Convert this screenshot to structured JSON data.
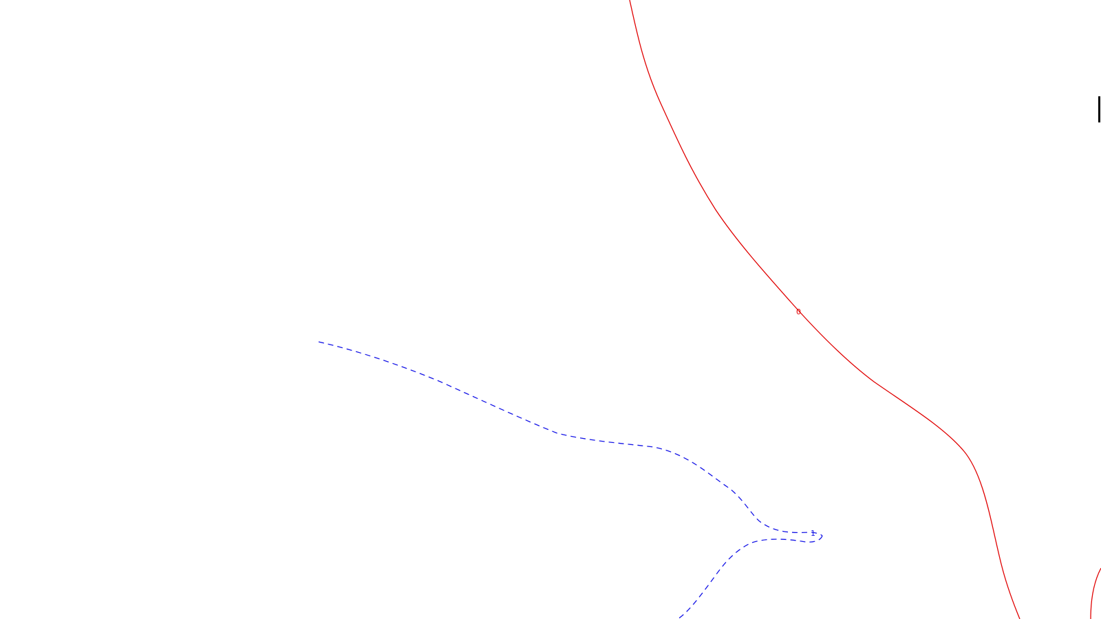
{
  "contours": [
    {
      "label": "0",
      "color": "#e00000",
      "line_style": "solid"
    },
    {
      "label": "1",
      "color": "#1414e6",
      "line_style": "dashed"
    }
  ],
  "edge_mark_color": "#000000"
}
